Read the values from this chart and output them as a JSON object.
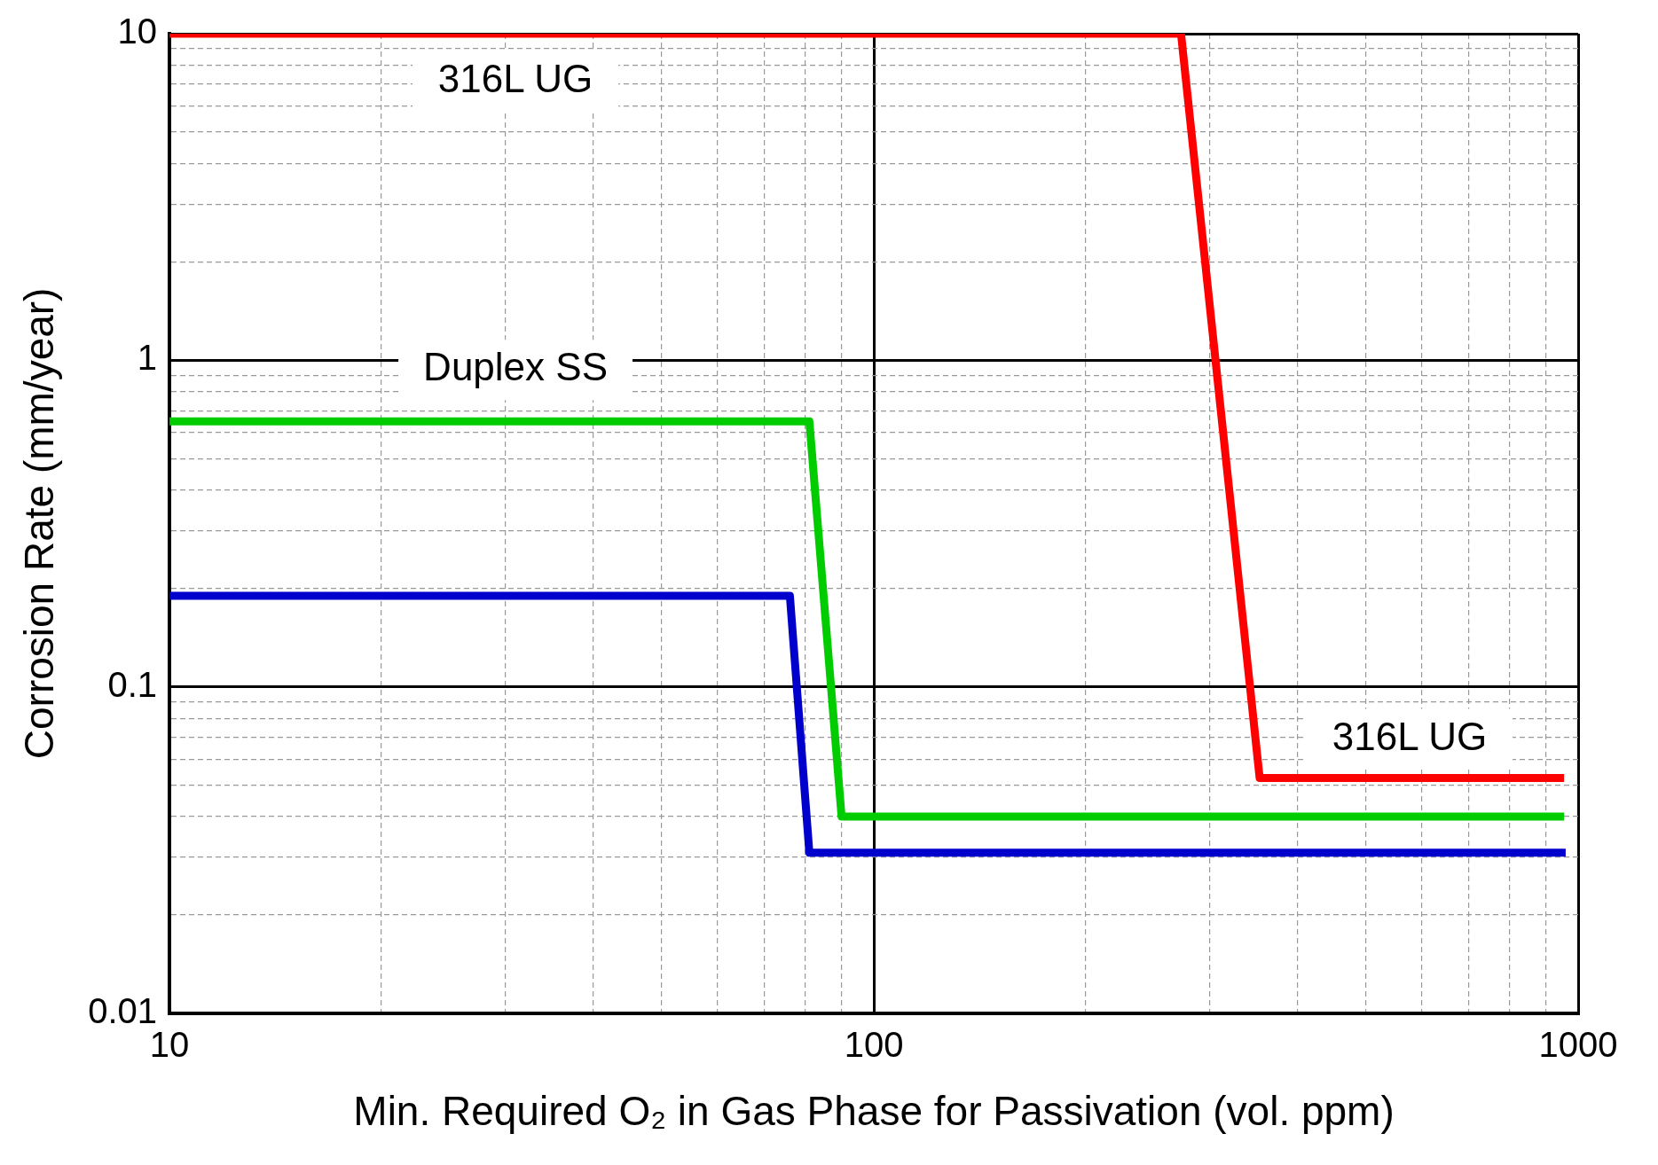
{
  "chart_data": {
    "type": "line",
    "xlabel": "Min. Required O₂ in Gas Phase for Passivation (vol. ppm)",
    "ylabel": "Corrosion Rate (mm/year)",
    "log": "xy",
    "grid": true,
    "legend": false,
    "marker": "none",
    "line_style": "solid",
    "xlim": [
      10,
      1000
    ],
    "ylim": [
      0.01,
      10
    ],
    "xticks": [
      10,
      {
        "value": 20,
        "label": null
      },
      {
        "value": 30,
        "label": null
      },
      {
        "value": 40,
        "label": null
      },
      {
        "value": 50,
        "label": null
      },
      {
        "value": 60,
        "label": null
      },
      {
        "value": 70,
        "label": null
      },
      {
        "value": 80,
        "label": null
      },
      {
        "value": 90,
        "label": null
      },
      100,
      {
        "value": 200,
        "label": null
      },
      {
        "value": 300,
        "label": null
      },
      {
        "value": 400,
        "label": null
      },
      {
        "value": 500,
        "label": null
      },
      {
        "value": 600,
        "label": null
      },
      {
        "value": 700,
        "label": null
      },
      {
        "value": 800,
        "label": null
      },
      {
        "value": 900,
        "label": null
      },
      1000
    ],
    "yticks": [
      0.01,
      {
        "value": 0.02,
        "label": null
      },
      {
        "value": 0.03,
        "label": null
      },
      {
        "value": 0.04,
        "label": null
      },
      {
        "value": 0.05,
        "label": null
      },
      {
        "value": 0.06,
        "label": null
      },
      {
        "value": 0.07,
        "label": null
      },
      {
        "value": 0.08,
        "label": null
      },
      {
        "value": 0.09,
        "label": null
      },
      0.1,
      {
        "value": 0.2,
        "label": null
      },
      {
        "value": 0.3,
        "label": null
      },
      {
        "value": 0.4,
        "label": null
      },
      {
        "value": 0.5,
        "label": null
      },
      {
        "value": 0.6,
        "label": null
      },
      {
        "value": 0.7,
        "label": null
      },
      {
        "value": 0.8,
        "label": null
      },
      {
        "value": 0.9,
        "label": null
      },
      1,
      {
        "value": 2,
        "label": null
      },
      {
        "value": 3,
        "label": null
      },
      {
        "value": 4,
        "label": null
      },
      {
        "value": 5,
        "label": null
      },
      {
        "value": 6,
        "label": null
      },
      {
        "value": 7,
        "label": null
      },
      {
        "value": 8,
        "label": null
      },
      {
        "value": 9,
        "label": null
      },
      10
    ],
    "series": [
      {
        "name": "316L UG",
        "color": "#ff0000",
        "x": [
          10,
          273,
          353,
          955
        ],
        "values": [
          10,
          10,
          0.0525,
          0.0525
        ]
      },
      {
        "name": "Duplex SS",
        "color": "#00cc00",
        "x": [
          10,
          81,
          90,
          955
        ],
        "values": [
          0.65,
          0.65,
          0.04,
          0.04
        ]
      },
      {
        "color": "#0000cc",
        "x": [
          10,
          75,
          76,
          81,
          960
        ],
        "values": [
          0.19,
          0.19,
          0.19,
          0.031,
          0.031
        ]
      }
    ],
    "annotations": [
      "316L UG"
    ]
  }
}
